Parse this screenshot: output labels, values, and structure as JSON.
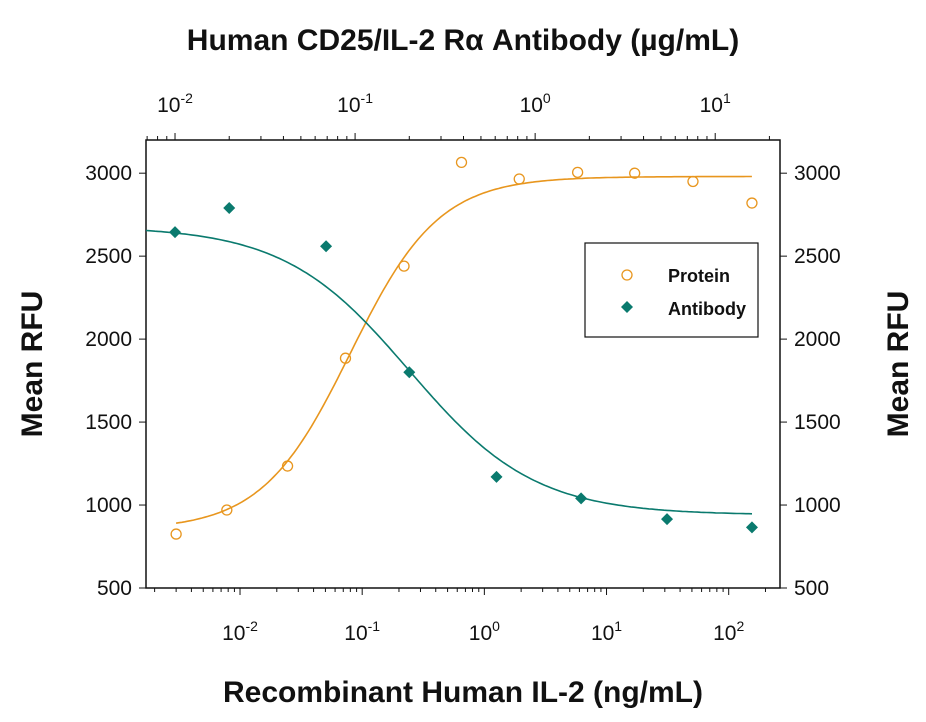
{
  "chart_data": {
    "type": "scatter",
    "title": "",
    "top_xlabel": "Human CD25/IL-2 Rα Antibody (µg/mL)",
    "xlabel": "Recombinant Human IL-2 (ng/mL)",
    "ylabel": "Mean RFU",
    "right_ylabel": "Mean RFU",
    "xscale": "log",
    "xlim": [
      0.0017,
      263
    ],
    "top_xscale": "log",
    "top_xlim": [
      0.0069,
      22.9
    ],
    "ylim": [
      500,
      3200
    ],
    "yticks": [
      500,
      1000,
      1500,
      2000,
      2500,
      3000
    ],
    "xticks": [
      {
        "base": "10",
        "exp": "-2",
        "value": 0.01
      },
      {
        "base": "10",
        "exp": "-1",
        "value": 0.1
      },
      {
        "base": "10",
        "exp": "0",
        "value": 1
      },
      {
        "base": "10",
        "exp": "1",
        "value": 10
      },
      {
        "base": "10",
        "exp": "2",
        "value": 100
      }
    ],
    "top_xticks": [
      {
        "base": "10",
        "exp": "-2",
        "value": 0.01
      },
      {
        "base": "10",
        "exp": "-1",
        "value": 0.1
      },
      {
        "base": "10",
        "exp": "0",
        "value": 1
      },
      {
        "base": "10",
        "exp": "1",
        "value": 10
      }
    ],
    "grid": false,
    "legend_placement": "right",
    "series": [
      {
        "name": "Protein",
        "axis": "bottom",
        "marker": "open-circle",
        "color": "#E8961E",
        "x": [
          0.003,
          0.0078,
          0.0245,
          0.073,
          0.22,
          0.65,
          1.93,
          5.8,
          17,
          51,
          155
        ],
        "y": [
          825,
          970,
          1235,
          1885,
          2440,
          3065,
          2965,
          3005,
          3000,
          2950,
          2820
        ],
        "fit": {
          "model": "4PL",
          "bottom": 850,
          "top": 2980,
          "ec50": 0.08,
          "hill": 1.2,
          "range": [
            0.003,
            155
          ]
        }
      },
      {
        "name": "Antibody",
        "axis": "top",
        "marker": "filled-diamond",
        "color": "#0A7A6E",
        "x": [
          0.01,
          0.02,
          0.069,
          0.2,
          0.61,
          1.8,
          5.4,
          16
        ],
        "y": [
          2645,
          2790,
          2560,
          1800,
          1170,
          1040,
          915,
          865
        ],
        "fit": {
          "model": "4PL",
          "bottom": 940,
          "top": 2680,
          "ec50": 0.2,
          "hill": 1.25,
          "range": [
            0.0069,
            16
          ]
        }
      }
    ]
  }
}
